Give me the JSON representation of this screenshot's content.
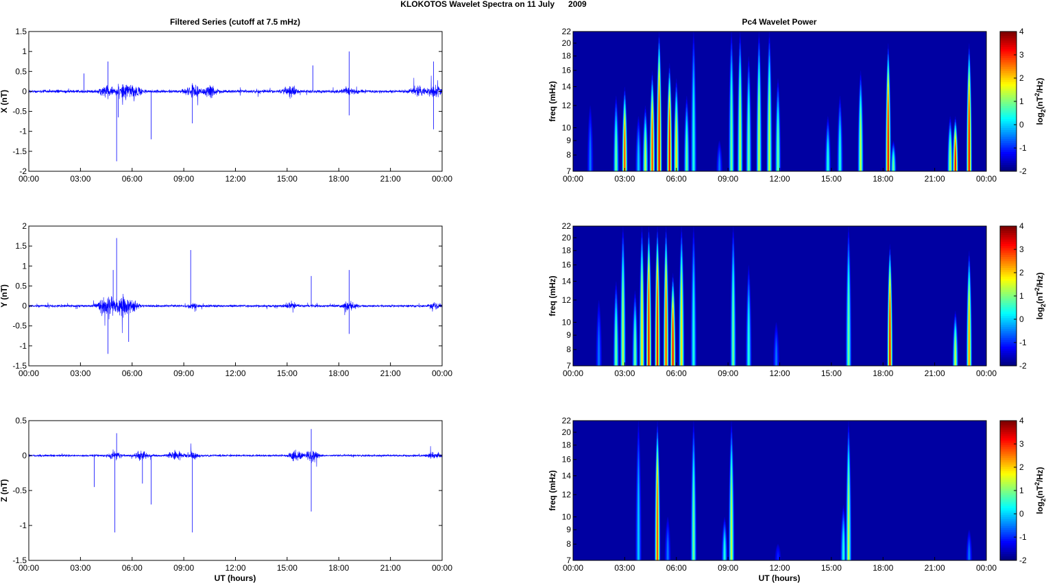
{
  "title": "KLOKOTOS Wavelet Spectra on 11 July      2009",
  "left_title": "Filtered Series (cutoff at 7.5 mHz)",
  "right_title": "Pc4 Wavelet Power",
  "xlabel": "UT (hours)",
  "x_ticks": [
    "00:00",
    "03:00",
    "06:00",
    "09:00",
    "12:00",
    "15:00",
    "18:00",
    "21:00",
    "00:00"
  ],
  "freq_ticks": [
    7,
    8,
    9,
    10,
    12,
    14,
    16,
    18,
    20,
    22
  ],
  "freq_label": "freq (mHz)",
  "colorbar": {
    "label": "log2(nT2/Hz)",
    "ticks": [
      4,
      3,
      2,
      1,
      0,
      -1,
      -2
    ],
    "range": [
      -2,
      4
    ],
    "colormap": "jet"
  },
  "line_color": "#0000ff",
  "chart_data": [
    {
      "type": "line",
      "ylabel": "X (nT)",
      "ylim": [
        -2,
        1.5
      ],
      "yticks": [
        1.5,
        1,
        0.5,
        0,
        -0.5,
        -1,
        -1.5,
        -2
      ],
      "xlim": [
        0,
        24
      ],
      "base_noise": 0.05,
      "bursts": [
        [
          4.5,
          0.2
        ],
        [
          5.5,
          0.25
        ],
        [
          6.2,
          0.2
        ],
        [
          9.5,
          0.22
        ],
        [
          10.5,
          0.2
        ],
        [
          15.2,
          0.15
        ],
        [
          18.6,
          0.12
        ],
        [
          22.6,
          0.15
        ],
        [
          23.6,
          0.2
        ]
      ],
      "spikes": [
        [
          4.6,
          0.75
        ],
        [
          5.1,
          -1.75
        ],
        [
          5.2,
          -0.65
        ],
        [
          7.1,
          -1.2
        ],
        [
          9.5,
          -0.8
        ],
        [
          18.6,
          1.0
        ],
        [
          18.6,
          -0.6
        ],
        [
          23.5,
          0.75
        ],
        [
          23.5,
          -0.95
        ],
        [
          3.2,
          0.45
        ],
        [
          16.5,
          0.65
        ]
      ]
    },
    {
      "type": "heatmap",
      "ylabel": "freq (mHz)",
      "ylim": [
        7,
        22
      ],
      "yscale": "log",
      "xlim": [
        0,
        24
      ],
      "clim": [
        -2,
        4
      ],
      "events": [
        [
          1.0,
          -0.5,
          12
        ],
        [
          2.5,
          1,
          13
        ],
        [
          3.0,
          3,
          14
        ],
        [
          3.8,
          0,
          11
        ],
        [
          4.2,
          1.5,
          12
        ],
        [
          4.6,
          3,
          16
        ],
        [
          5.0,
          3.5,
          22
        ],
        [
          5.6,
          3.5,
          17
        ],
        [
          6.0,
          2,
          15
        ],
        [
          6.6,
          1,
          13
        ],
        [
          7.0,
          0.5,
          22
        ],
        [
          8.5,
          -0.5,
          9
        ],
        [
          9.2,
          1,
          22
        ],
        [
          9.7,
          1.5,
          22
        ],
        [
          10.2,
          1,
          18
        ],
        [
          10.8,
          1.5,
          22
        ],
        [
          11.4,
          1.5,
          22
        ],
        [
          11.9,
          1,
          15
        ],
        [
          14.8,
          0.5,
          11
        ],
        [
          15.5,
          0.5,
          13
        ],
        [
          16.7,
          1.5,
          16
        ],
        [
          18.3,
          3.5,
          20
        ],
        [
          18.6,
          1,
          9
        ],
        [
          21.9,
          1.5,
          11
        ],
        [
          22.2,
          3.5,
          11
        ],
        [
          23.0,
          3.5,
          20
        ]
      ]
    },
    {
      "type": "line",
      "ylabel": "Y (nT)",
      "ylim": [
        -1.5,
        2
      ],
      "yticks": [
        2,
        1.5,
        1,
        0.5,
        0,
        -0.5,
        -1,
        -1.5
      ],
      "xlim": [
        0,
        24
      ],
      "base_noise": 0.04,
      "bursts": [
        [
          4.3,
          0.2
        ],
        [
          4.8,
          0.3
        ],
        [
          5.5,
          0.3
        ],
        [
          6.0,
          0.15
        ],
        [
          9.5,
          0.06
        ],
        [
          15.2,
          0.08
        ],
        [
          18.6,
          0.15
        ],
        [
          23.6,
          0.1
        ]
      ],
      "spikes": [
        [
          5.1,
          1.7
        ],
        [
          4.6,
          -1.2
        ],
        [
          9.4,
          1.4
        ],
        [
          16.4,
          0.75
        ],
        [
          18.6,
          0.9
        ],
        [
          18.6,
          -0.7
        ],
        [
          5.8,
          -0.9
        ],
        [
          4.9,
          0.9
        ]
      ]
    },
    {
      "type": "heatmap",
      "ylabel": "freq (mHz)",
      "ylim": [
        7,
        22
      ],
      "yscale": "log",
      "xlim": [
        0,
        24
      ],
      "clim": [
        -2,
        4
      ],
      "events": [
        [
          1.5,
          -0.5,
          12
        ],
        [
          2.5,
          1,
          14
        ],
        [
          2.9,
          1.5,
          22
        ],
        [
          3.6,
          1,
          13
        ],
        [
          4.0,
          2,
          22
        ],
        [
          4.4,
          3.5,
          22
        ],
        [
          4.9,
          3.5,
          22
        ],
        [
          5.4,
          3,
          22
        ],
        [
          5.8,
          3.5,
          15
        ],
        [
          6.3,
          2,
          22
        ],
        [
          7.0,
          0.5,
          22
        ],
        [
          9.3,
          1,
          22
        ],
        [
          10.2,
          0.5,
          16
        ],
        [
          11.8,
          -0.5,
          10
        ],
        [
          16.0,
          1,
          22
        ],
        [
          18.4,
          3.5,
          19
        ],
        [
          22.2,
          1.5,
          11
        ],
        [
          23.0,
          2.5,
          18
        ]
      ]
    },
    {
      "type": "line",
      "ylabel": "Z (nT)",
      "ylim": [
        -1.5,
        0.5
      ],
      "yticks": [
        0.5,
        0,
        -0.5,
        -1,
        -1.5
      ],
      "xlim": [
        0,
        24
      ],
      "base_noise": 0.02,
      "bursts": [
        [
          5.0,
          0.08
        ],
        [
          6.5,
          0.08
        ],
        [
          8.5,
          0.08
        ],
        [
          9.5,
          0.06
        ],
        [
          15.5,
          0.1
        ],
        [
          16.4,
          0.12
        ],
        [
          23.6,
          0.06
        ]
      ],
      "spikes": [
        [
          5.0,
          -1.1
        ],
        [
          5.1,
          0.32
        ],
        [
          7.1,
          -0.7
        ],
        [
          9.5,
          -1.1
        ],
        [
          16.4,
          -0.8
        ],
        [
          16.4,
          0.38
        ],
        [
          3.8,
          -0.45
        ],
        [
          6.6,
          -0.4
        ]
      ]
    },
    {
      "type": "heatmap",
      "ylabel": "freq (mHz)",
      "ylim": [
        7,
        22
      ],
      "yscale": "log",
      "xlim": [
        0,
        24
      ],
      "clim": [
        -2,
        4
      ],
      "events": [
        [
          3.8,
          0,
          22
        ],
        [
          4.9,
          3,
          22
        ],
        [
          5.5,
          -0.5,
          10
        ],
        [
          7.0,
          1,
          22
        ],
        [
          8.8,
          0.5,
          10
        ],
        [
          9.2,
          1.5,
          22
        ],
        [
          11.9,
          -1,
          8
        ],
        [
          15.7,
          0.5,
          11
        ],
        [
          16.0,
          1.5,
          22
        ],
        [
          23.0,
          -0.5,
          9
        ]
      ]
    }
  ]
}
